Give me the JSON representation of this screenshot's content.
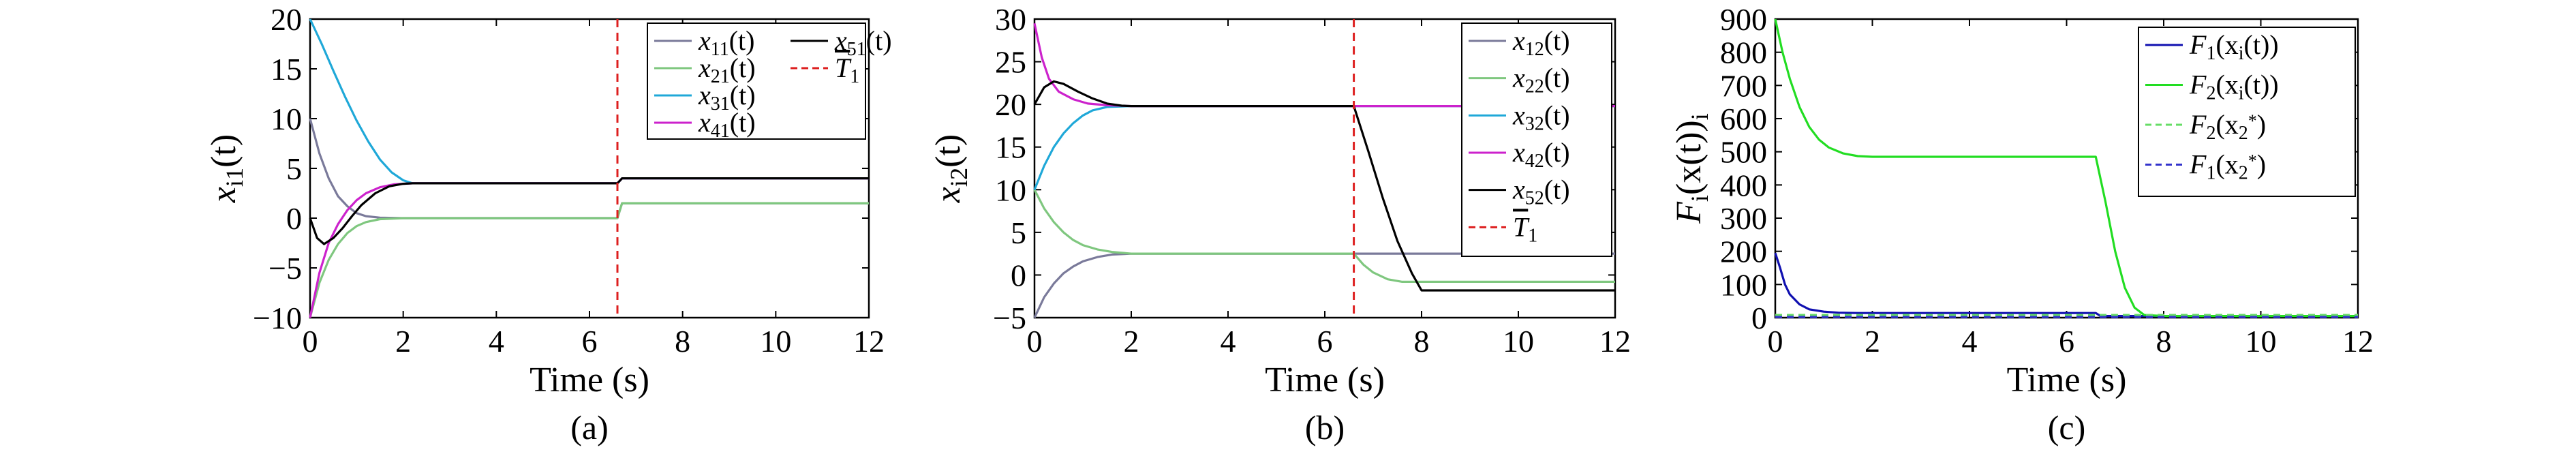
{
  "chart_data": [
    {
      "type": "line",
      "panel_label": "(a)",
      "xlabel": "Time (s)",
      "ylabel_var": "x",
      "ylabel_sub": "i1",
      "ylabel_tail": "(t)",
      "xlim": [
        0,
        12
      ],
      "ylim": [
        -10,
        20
      ],
      "xticks": [
        0,
        2,
        4,
        6,
        8,
        10,
        12
      ],
      "yticks": [
        -10,
        -5,
        0,
        5,
        10,
        15,
        20
      ],
      "vline": {
        "x": 6.6,
        "label_var": "T",
        "label_sub": "1",
        "color": "#dd1f1f"
      },
      "legend_placement": "top-right",
      "legend_columns": 2,
      "series": [
        {
          "name_var": "x",
          "name_sub": "11",
          "name_tail": "(t)",
          "color": "#7a7a9a",
          "x": [
            0,
            0.2,
            0.4,
            0.6,
            0.8,
            1.0,
            1.2,
            1.5,
            2.0,
            6.6,
            6.7,
            12
          ],
          "y": [
            10,
            6.5,
            4.0,
            2.2,
            1.2,
            0.5,
            0.2,
            0.05,
            0,
            0,
            1.5,
            1.5
          ]
        },
        {
          "name_var": "x",
          "name_sub": "21",
          "name_tail": "(t)",
          "color": "#7fc77f",
          "x": [
            0,
            0.2,
            0.4,
            0.6,
            0.8,
            1.0,
            1.2,
            1.5,
            2.0,
            6.6,
            6.7,
            12
          ],
          "y": [
            -10,
            -6.5,
            -4.2,
            -2.6,
            -1.5,
            -0.8,
            -0.4,
            -0.1,
            0,
            0,
            1.5,
            1.5
          ]
        },
        {
          "name_var": "x",
          "name_sub": "31",
          "name_tail": "(t)",
          "color": "#1fa8d8",
          "x": [
            0,
            0.25,
            0.5,
            0.75,
            1.0,
            1.25,
            1.5,
            1.75,
            2.0,
            2.2,
            6.6,
            6.7,
            12
          ],
          "y": [
            20,
            17.5,
            14.8,
            12.2,
            9.8,
            7.7,
            5.9,
            4.6,
            3.8,
            3.5,
            3.5,
            4.0,
            4.0
          ]
        },
        {
          "name_var": "x",
          "name_sub": "41",
          "name_tail": "(t)",
          "color": "#cc22cc",
          "x": [
            0,
            0.2,
            0.4,
            0.6,
            0.8,
            1.0,
            1.2,
            1.5,
            1.8,
            2.2,
            6.6,
            6.7,
            12
          ],
          "y": [
            -10,
            -5.5,
            -2.5,
            -0.6,
            0.8,
            1.8,
            2.5,
            3.1,
            3.4,
            3.5,
            3.5,
            4.0,
            4.0
          ]
        },
        {
          "name_var": "x",
          "name_sub": "51",
          "name_tail": "(t)",
          "color": "#000000",
          "x": [
            0,
            0.15,
            0.3,
            0.5,
            0.7,
            0.9,
            1.1,
            1.4,
            1.7,
            2.0,
            2.2,
            6.6,
            6.7,
            12
          ],
          "y": [
            0,
            -2.0,
            -2.6,
            -2.0,
            -1.0,
            0.2,
            1.3,
            2.5,
            3.2,
            3.45,
            3.5,
            3.5,
            4.0,
            4.0
          ]
        }
      ]
    },
    {
      "type": "line",
      "panel_label": "(b)",
      "xlabel": "Time (s)",
      "ylabel_var": "x",
      "ylabel_sub": "i2",
      "ylabel_tail": "(t)",
      "xlim": [
        0,
        12
      ],
      "ylim": [
        -5,
        30
      ],
      "xticks": [
        0,
        2,
        4,
        6,
        8,
        10,
        12
      ],
      "yticks": [
        -5,
        0,
        5,
        10,
        15,
        20,
        25,
        30
      ],
      "vline": {
        "x": 6.6,
        "label_var": "T",
        "label_sub": "1",
        "color": "#dd1f1f"
      },
      "legend_placement": "top-right",
      "legend_columns": 1,
      "series": [
        {
          "name_var": "x",
          "name_sub": "12",
          "name_tail": "(t)",
          "color": "#7a7a9a",
          "x": [
            0,
            0.2,
            0.4,
            0.6,
            0.8,
            1.0,
            1.3,
            1.6,
            2.0,
            6.6,
            12
          ],
          "y": [
            -5,
            -2.6,
            -1.0,
            0.2,
            1.0,
            1.6,
            2.1,
            2.4,
            2.5,
            2.5,
            2.5
          ]
        },
        {
          "name_var": "x",
          "name_sub": "22",
          "name_tail": "(t)",
          "color": "#7fc77f",
          "x": [
            0,
            0.2,
            0.4,
            0.6,
            0.8,
            1.0,
            1.3,
            1.6,
            2.0,
            6.6,
            6.8,
            7.0,
            7.3,
            7.6,
            12
          ],
          "y": [
            10,
            7.8,
            6.2,
            5.0,
            4.1,
            3.5,
            3.0,
            2.7,
            2.5,
            2.5,
            1.2,
            0.3,
            -0.5,
            -0.8,
            -0.8
          ]
        },
        {
          "name_var": "x",
          "name_sub": "32",
          "name_tail": "(t)",
          "color": "#1fa8d8",
          "x": [
            0,
            0.2,
            0.4,
            0.6,
            0.8,
            1.0,
            1.2,
            1.5,
            2.0,
            6.6,
            12
          ],
          "y": [
            10,
            12.8,
            15.0,
            16.6,
            17.8,
            18.7,
            19.3,
            19.7,
            19.8,
            19.8,
            19.8
          ]
        },
        {
          "name_var": "x",
          "name_sub": "42",
          "name_tail": "(t)",
          "color": "#cc22cc",
          "x": [
            0,
            0.15,
            0.3,
            0.5,
            0.8,
            1.1,
            1.5,
            2.0,
            6.6,
            12
          ],
          "y": [
            29.5,
            25.5,
            23.0,
            21.5,
            20.6,
            20.1,
            19.9,
            19.8,
            19.8,
            19.8
          ]
        },
        {
          "name_var": "x",
          "name_sub": "52",
          "name_tail": "(t)",
          "color": "#000000",
          "x": [
            0,
            0.2,
            0.4,
            0.6,
            0.9,
            1.2,
            1.5,
            1.8,
            2.0,
            6.6,
            6.9,
            7.2,
            7.5,
            7.8,
            8.0,
            12
          ],
          "y": [
            20,
            22.0,
            22.7,
            22.4,
            21.5,
            20.7,
            20.1,
            19.85,
            19.8,
            19.8,
            14.5,
            9.0,
            4.0,
            0.2,
            -1.8,
            -1.8
          ]
        }
      ]
    },
    {
      "type": "line",
      "panel_label": "(c)",
      "xlabel": "Time (s)",
      "ylabel_var": "F",
      "ylabel_sub": "i",
      "ylabel_mid": "(x",
      "ylabel_sub2": "i",
      "ylabel_tail": "(t))",
      "xlim": [
        0,
        12
      ],
      "ylim": [
        0,
        900
      ],
      "xticks": [
        0,
        2,
        4,
        6,
        8,
        10,
        12
      ],
      "yticks": [
        0,
        100,
        200,
        300,
        400,
        500,
        600,
        700,
        800,
        900
      ],
      "legend_placement": "top-right",
      "legend_columns": 1,
      "series": [
        {
          "name_var": "F",
          "name_sub": "1",
          "name_tail": "(x",
          "name_sub2": "i",
          "name_tail2": "(t))",
          "color": "#1010b0",
          "dash": false,
          "x": [
            0,
            0.1,
            0.2,
            0.3,
            0.5,
            0.7,
            1.0,
            1.3,
            1.7,
            2.0,
            6.6,
            6.7,
            12
          ],
          "y": [
            195,
            150,
            100,
            70,
            40,
            25,
            18,
            15,
            14,
            14,
            14,
            5,
            5
          ]
        },
        {
          "name_var": "F",
          "name_sub": "2",
          "name_tail": "(x",
          "name_sub2": "i",
          "name_tail2": "(t))",
          "color": "#22dd22",
          "dash": false,
          "x": [
            0,
            0.15,
            0.3,
            0.5,
            0.7,
            0.9,
            1.1,
            1.4,
            1.7,
            2.0,
            6.6,
            6.8,
            7.0,
            7.2,
            7.4,
            7.6,
            8.0,
            12
          ],
          "y": [
            900,
            800,
            720,
            635,
            575,
            537,
            513,
            495,
            487,
            485,
            485,
            350,
            200,
            90,
            30,
            8,
            5,
            5
          ]
        },
        {
          "name_var": "F",
          "name_sub": "2",
          "name_tail": "(x",
          "name_sub2": "2",
          "name_sup2": "*",
          "name_tail2": ")",
          "color": "#66dd66",
          "dash": true,
          "x": [
            0,
            12
          ],
          "y": [
            8,
            8
          ]
        },
        {
          "name_var": "F",
          "name_sub": "1",
          "name_tail": "(x",
          "name_sub2": "2",
          "name_sup2": "*",
          "name_tail2": ")",
          "color": "#3333cc",
          "dash": true,
          "x": [
            0,
            12
          ],
          "y": [
            2,
            2
          ]
        }
      ]
    }
  ]
}
